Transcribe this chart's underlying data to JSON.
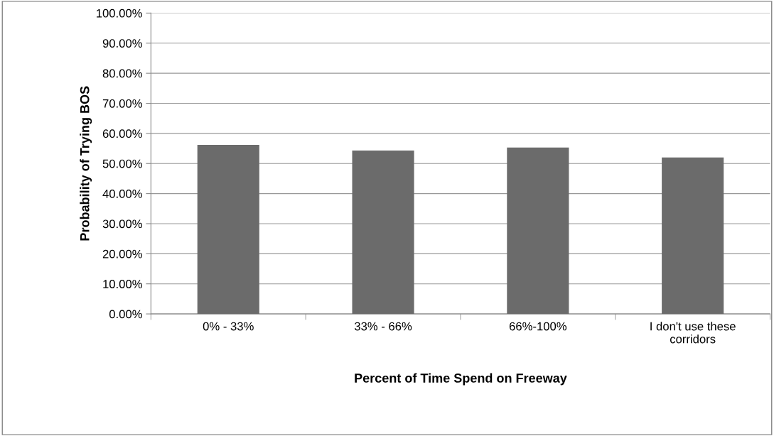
{
  "chart_data": {
    "type": "bar",
    "xlabel": "Percent of Time Spend on Freeway",
    "ylabel": "Probability of Trying BOS",
    "categories": [
      "0% - 33%",
      "33% - 66%",
      "66%-100%",
      "I don't use these\ncorridors"
    ],
    "values": [
      56.2,
      54.3,
      55.3,
      52.0
    ],
    "color": "#6b6b6b",
    "ylim": [
      0,
      100
    ],
    "yticks": [
      {
        "value": 0,
        "label": "0.00%"
      },
      {
        "value": 10,
        "label": "10.00%"
      },
      {
        "value": 20,
        "label": "20.00%"
      },
      {
        "value": 30,
        "label": "30.00%"
      },
      {
        "value": 40,
        "label": "40.00%"
      },
      {
        "value": 50,
        "label": "50.00%"
      },
      {
        "value": 60,
        "label": "60.00%"
      },
      {
        "value": 70,
        "label": "70.00%"
      },
      {
        "value": 80,
        "label": "80.00%"
      },
      {
        "value": 90,
        "label": "90.00%"
      },
      {
        "value": 100,
        "label": "100.00%"
      }
    ],
    "grid": "y",
    "legend": false
  }
}
